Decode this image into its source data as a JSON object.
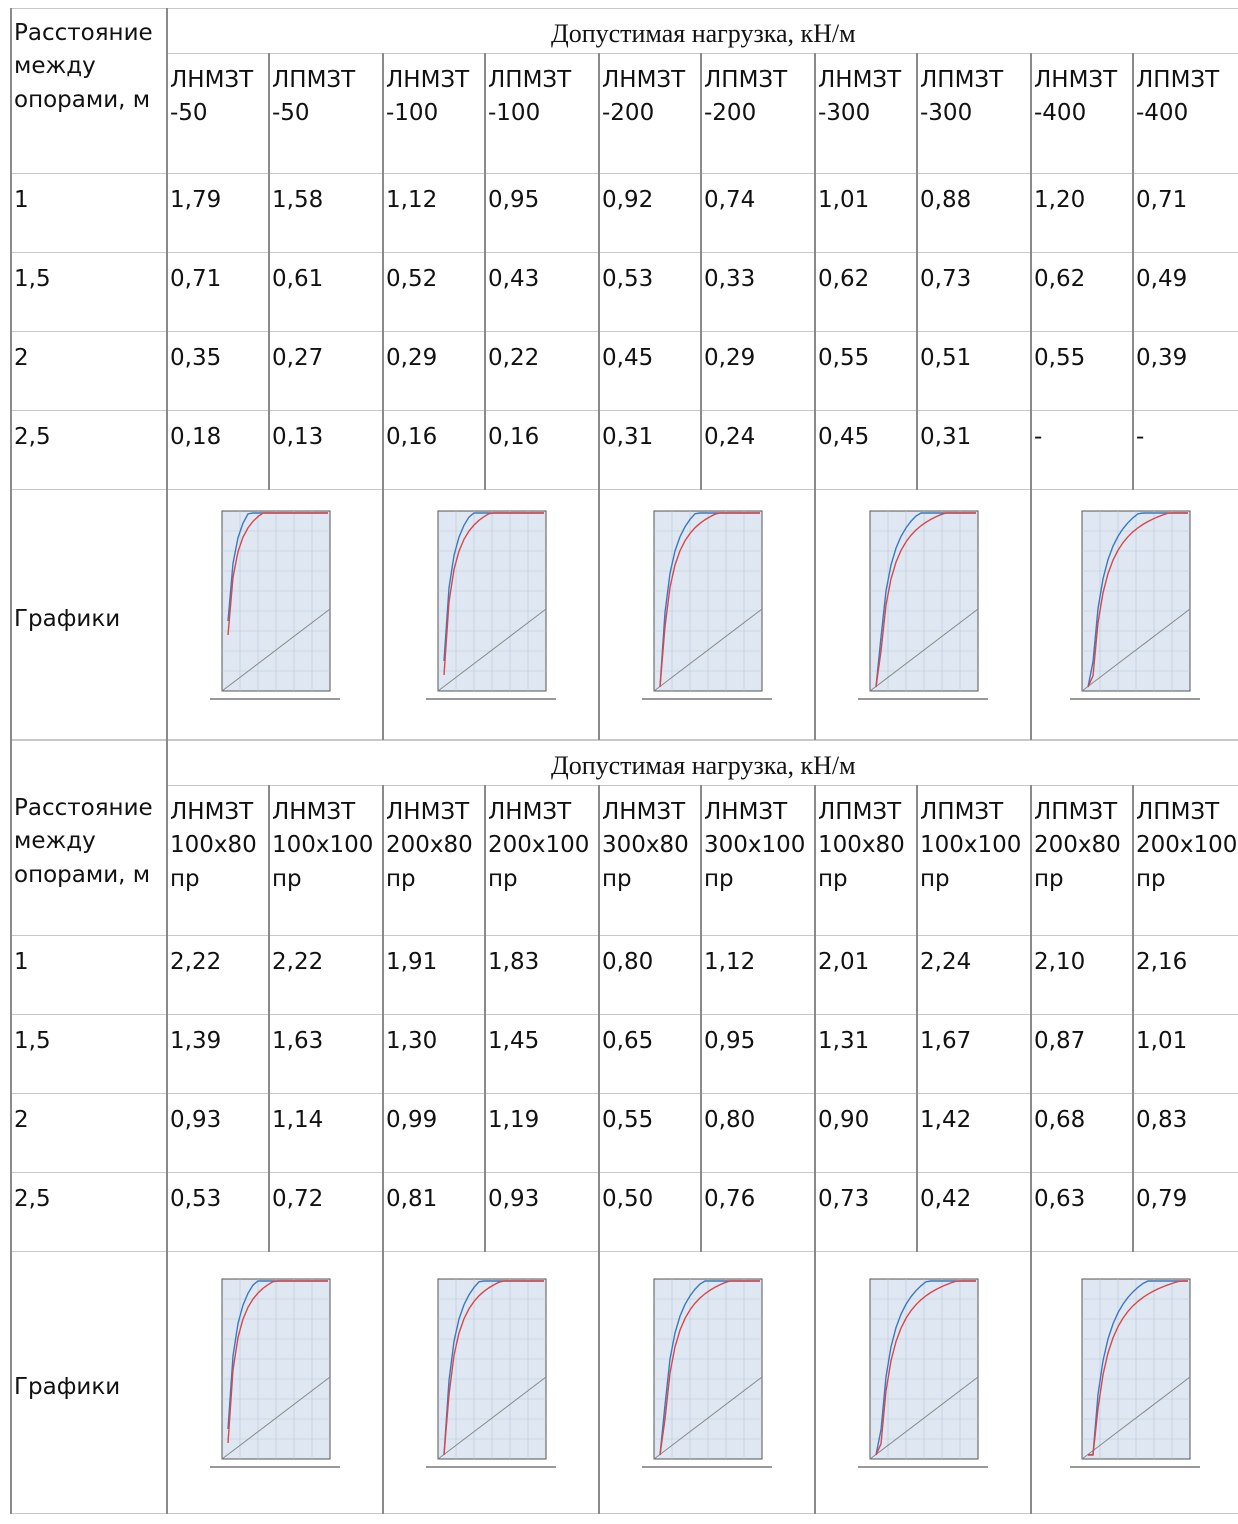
{
  "tables": [
    {
      "row_label": "Расстояние между опорами, м",
      "group_label": "Допустимая нагрузка, кН/м",
      "columns": [
        [
          "ЛНМЗТ",
          "-50"
        ],
        [
          "ЛПМЗТ",
          "-50"
        ],
        [
          "ЛНМЗТ",
          "-100"
        ],
        [
          "ЛПМЗТ",
          "-100"
        ],
        [
          "ЛНМЗТ",
          "-200"
        ],
        [
          "ЛПМЗТ",
          "-200"
        ],
        [
          "ЛНМЗТ",
          "-300"
        ],
        [
          "ЛПМЗТ",
          "-300"
        ],
        [
          "ЛНМЗТ",
          "-400"
        ],
        [
          "ЛПМЗТ",
          "-400"
        ]
      ],
      "rows": [
        {
          "distance": "1",
          "values": [
            "1,79",
            "1,58",
            "1,12",
            "0,95",
            "0,92",
            "0,74",
            "1,01",
            "0,88",
            "1,20",
            "0,71"
          ]
        },
        {
          "distance": "1,5",
          "values": [
            "0,71",
            "0,61",
            "0,52",
            "0,43",
            "0,53",
            "0,33",
            "0,62",
            "0,73",
            "0,62",
            "0,49"
          ]
        },
        {
          "distance": "2",
          "values": [
            "0,35",
            "0,27",
            "0,29",
            "0,22",
            "0,45",
            "0,29",
            "0,55",
            "0,51",
            "0,55",
            "0,39"
          ]
        },
        {
          "distance": "2,5",
          "values": [
            "0,18",
            "0,13",
            "0,16",
            "0,16",
            "0,31",
            "0,24",
            "0,45",
            "0,31",
            "-",
            "-"
          ]
        }
      ],
      "graphs_label": "Графики"
    },
    {
      "row_label": "Расстояние между опорами, м",
      "group_label": "Допустимая нагрузка, кН/м",
      "columns": [
        [
          "ЛНМЗТ",
          "100x80",
          "пр"
        ],
        [
          "ЛНМЗТ",
          "100x100",
          "пр"
        ],
        [
          "ЛНМЗТ",
          "200x80",
          "пр"
        ],
        [
          "ЛНМЗТ",
          "200x100",
          "пр"
        ],
        [
          "ЛНМЗТ",
          "300x80",
          "пр"
        ],
        [
          "ЛНМЗТ",
          "300x100",
          "пр"
        ],
        [
          "ЛПМЗТ",
          "100x80",
          "пр"
        ],
        [
          "ЛПМЗТ",
          "100x100",
          "пр"
        ],
        [
          "ЛПМЗТ",
          "200x80",
          "пр"
        ],
        [
          "ЛПМЗТ",
          "200x100",
          "пр"
        ]
      ],
      "rows": [
        {
          "distance": "1",
          "values": [
            "2,22",
            "2,22",
            "1,91",
            "1,83",
            "0,80",
            "1,12",
            "2,01",
            "2,24",
            "2,10",
            "2,16"
          ]
        },
        {
          "distance": "1,5",
          "values": [
            "1,39",
            "1,63",
            "1,30",
            "1,45",
            "0,65",
            "0,95",
            "1,31",
            "1,67",
            "0,87",
            "1,01"
          ]
        },
        {
          "distance": "2",
          "values": [
            "0,93",
            "1,14",
            "0,99",
            "1,19",
            "0,55",
            "0,80",
            "0,90",
            "1,42",
            "0,68",
            "0,83"
          ]
        },
        {
          "distance": "2,5",
          "values": [
            "0,53",
            "0,72",
            "0,81",
            "0,93",
            "0,50",
            "0,76",
            "0,73",
            "0,42",
            "0,63",
            "0,79"
          ]
        }
      ],
      "graphs_label": "Графики"
    }
  ]
}
